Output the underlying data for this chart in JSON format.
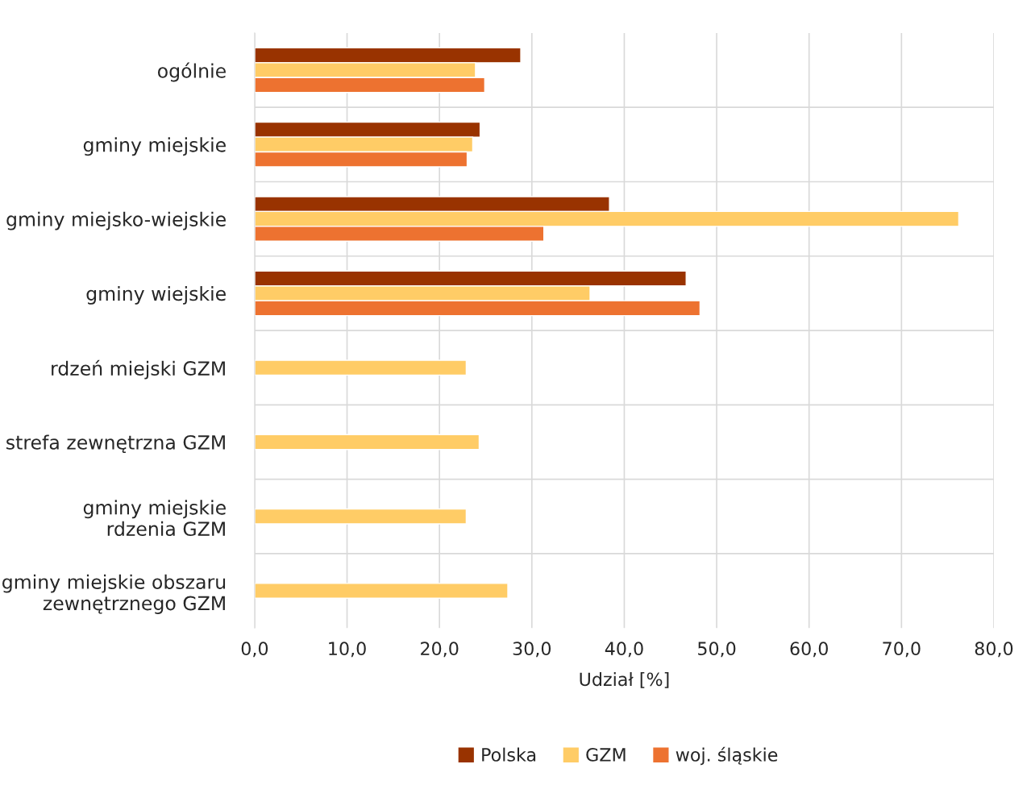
{
  "chart_data": {
    "type": "bar",
    "orientation": "horizontal",
    "xlabel": "Udział [%]",
    "categories": [
      "ogólnie",
      "gminy miejskie",
      "gminy miejsko-wiejskie",
      "gminy wiejskie",
      "rdzeń miejski GZM",
      "strefa zewnętrzna GZM",
      "gminy miejskie\nrdzenia GZM",
      "gminy miejskie obszaru\nzewnętrznego GZM"
    ],
    "series": [
      {
        "name": "Polska",
        "color": "#993300",
        "values": [
          28.8,
          24.4,
          38.4,
          46.7,
          null,
          null,
          null,
          null
        ]
      },
      {
        "name": "GZM",
        "color": "#ffcc66",
        "values": [
          23.9,
          23.6,
          76.2,
          36.3,
          22.9,
          24.3,
          22.9,
          27.4
        ]
      },
      {
        "name": "woj. śląskie",
        "color": "#ed7230",
        "values": [
          24.9,
          23.0,
          31.3,
          48.2,
          null,
          null,
          null,
          null
        ]
      }
    ],
    "xlim": [
      0,
      80
    ],
    "xticks": [
      {
        "value": 0,
        "label": "0,0"
      },
      {
        "value": 10,
        "label": "10,0"
      },
      {
        "value": 20,
        "label": "20,0"
      },
      {
        "value": 30,
        "label": "30,0"
      },
      {
        "value": 40,
        "label": "40,0"
      },
      {
        "value": 50,
        "label": "50,0"
      },
      {
        "value": 60,
        "label": "60,0"
      },
      {
        "value": 70,
        "label": "70,0"
      },
      {
        "value": 80,
        "label": "80,0"
      }
    ],
    "grid": true,
    "legend": "bottom"
  }
}
